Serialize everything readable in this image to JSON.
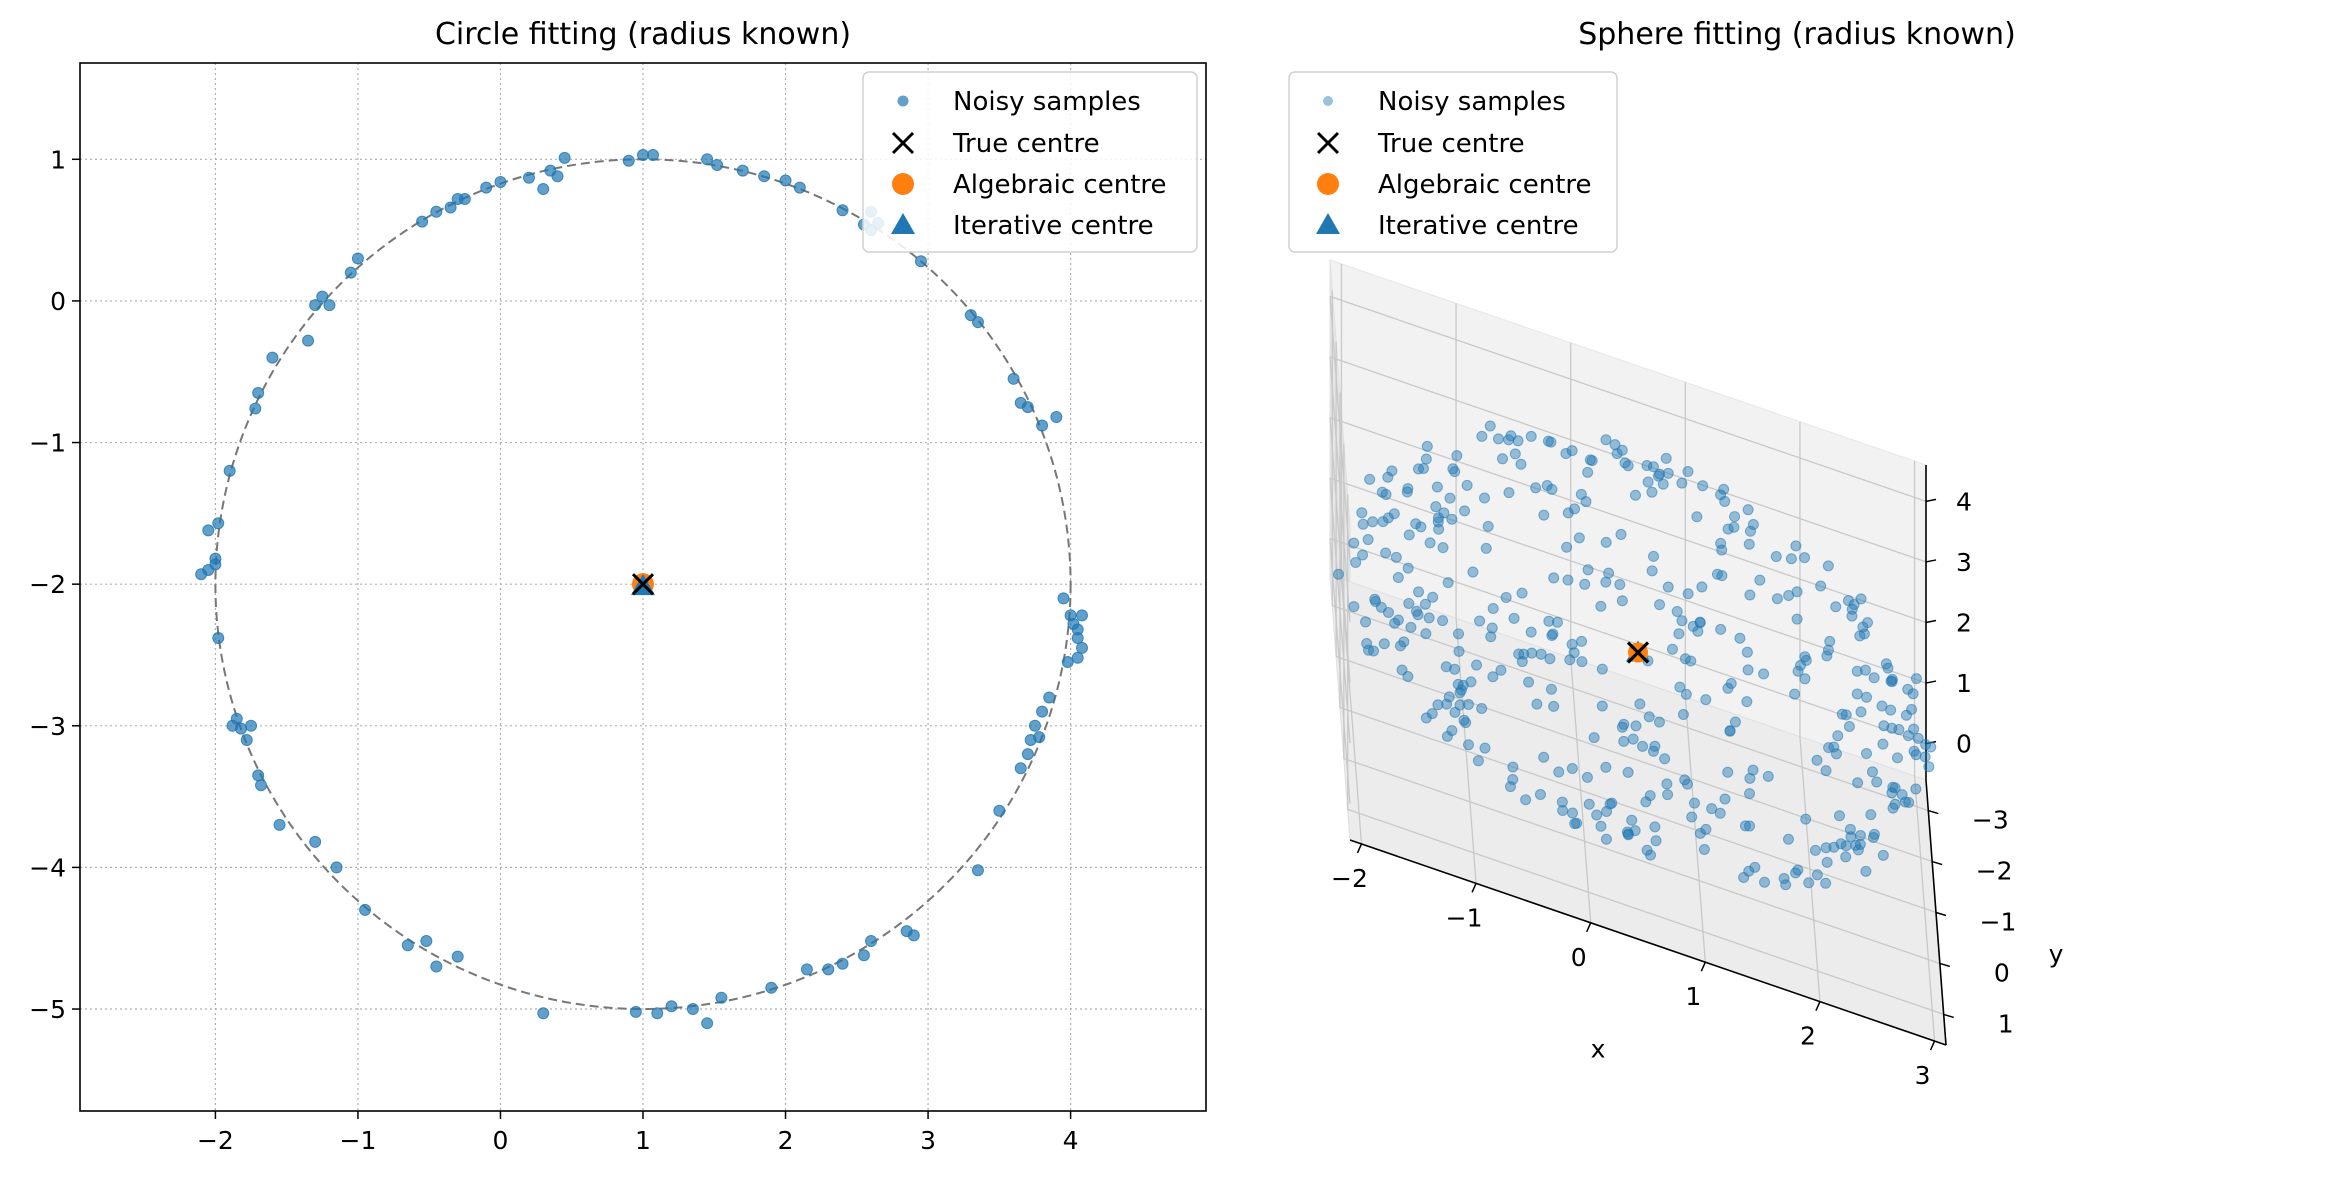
{
  "chart_data": [
    {
      "type": "scatter",
      "title": "Circle fitting (radius known)",
      "xlabel": "",
      "ylabel": "",
      "xlim": [
        -2.95,
        4.95
      ],
      "ylim": [
        -5.72,
        1.68
      ],
      "xticks": [
        "−2",
        "−1",
        "0",
        "1",
        "2",
        "3",
        "4"
      ],
      "yticks": [
        "−5",
        "−4",
        "−3",
        "−2",
        "−1",
        "0",
        "1"
      ],
      "grid": true,
      "legend": "top-right",
      "colors": {
        "samples": "#1f77b4",
        "true": "#000000",
        "algebraic": "#ff7f0e",
        "iterative": "#1f77b4",
        "circle": "#777777"
      },
      "legend_labels": [
        "Noisy samples",
        "True centre",
        "Algebraic centre",
        "Iterative centre"
      ],
      "true_centre": [
        1.0,
        -2.0
      ],
      "algebraic_centre": [
        1.0,
        -2.0
      ],
      "iterative_centre": [
        1.0,
        -2.0
      ],
      "radius": 3.0,
      "samples": [
        [
          0.0,
          0.84
        ],
        [
          -0.1,
          0.8
        ],
        [
          -0.25,
          0.72
        ],
        [
          -0.3,
          0.72
        ],
        [
          -0.35,
          0.66
        ],
        [
          -0.45,
          0.63
        ],
        [
          -0.55,
          0.56
        ],
        [
          0.2,
          0.87
        ],
        [
          0.3,
          0.79
        ],
        [
          0.35,
          0.92
        ],
        [
          0.4,
          0.88
        ],
        [
          0.45,
          1.01
        ],
        [
          0.9,
          0.99
        ],
        [
          1.0,
          1.03
        ],
        [
          1.07,
          1.03
        ],
        [
          1.45,
          1.0
        ],
        [
          1.52,
          0.96
        ],
        [
          1.7,
          0.92
        ],
        [
          1.85,
          0.88
        ],
        [
          2.0,
          0.85
        ],
        [
          2.1,
          0.8
        ],
        [
          2.4,
          0.64
        ],
        [
          2.55,
          0.54
        ],
        [
          2.6,
          0.5
        ],
        [
          2.65,
          0.55
        ],
        [
          2.6,
          0.63
        ],
        [
          2.95,
          0.28
        ],
        [
          3.3,
          -0.1
        ],
        [
          3.35,
          -0.15
        ],
        [
          3.6,
          -0.55
        ],
        [
          3.65,
          -0.72
        ],
        [
          3.7,
          -0.75
        ],
        [
          3.8,
          -0.88
        ],
        [
          3.9,
          -0.82
        ],
        [
          -1.0,
          0.3
        ],
        [
          -1.05,
          0.2
        ],
        [
          -1.25,
          0.03
        ],
        [
          -1.3,
          -0.03
        ],
        [
          -1.2,
          -0.03
        ],
        [
          -1.35,
          -0.28
        ],
        [
          -1.6,
          -0.4
        ],
        [
          -1.7,
          -0.65
        ],
        [
          -1.72,
          -0.76
        ],
        [
          -1.9,
          -1.2
        ],
        [
          -2.05,
          -1.62
        ],
        [
          -1.98,
          -1.57
        ],
        [
          -2.0,
          -1.82
        ],
        [
          -2.0,
          -1.86
        ],
        [
          -2.05,
          -1.9
        ],
        [
          -2.1,
          -1.93
        ],
        [
          -1.98,
          -2.38
        ],
        [
          3.95,
          -2.1
        ],
        [
          4.0,
          -2.22
        ],
        [
          4.02,
          -2.28
        ],
        [
          4.05,
          -2.32
        ],
        [
          4.08,
          -2.22
        ],
        [
          4.05,
          -2.38
        ],
        [
          4.08,
          -2.45
        ],
        [
          4.05,
          -2.52
        ],
        [
          3.98,
          -2.55
        ],
        [
          3.85,
          -2.8
        ],
        [
          3.8,
          -2.9
        ],
        [
          3.75,
          -3.0
        ],
        [
          3.72,
          -3.1
        ],
        [
          3.78,
          -3.08
        ],
        [
          3.7,
          -3.2
        ],
        [
          3.65,
          -3.3
        ],
        [
          3.5,
          -3.6
        ],
        [
          3.35,
          -4.02
        ],
        [
          -1.85,
          -2.95
        ],
        [
          -1.88,
          -3.0
        ],
        [
          -1.82,
          -3.02
        ],
        [
          -1.78,
          -3.1
        ],
        [
          -1.75,
          -3.0
        ],
        [
          -1.7,
          -3.35
        ],
        [
          -1.68,
          -3.42
        ],
        [
          -1.55,
          -3.7
        ],
        [
          -1.3,
          -3.82
        ],
        [
          -1.15,
          -4.0
        ],
        [
          -0.95,
          -4.3
        ],
        [
          -0.65,
          -4.55
        ],
        [
          -0.52,
          -4.52
        ],
        [
          -0.45,
          -4.7
        ],
        [
          -0.3,
          -4.63
        ],
        [
          0.3,
          -5.03
        ],
        [
          2.85,
          -4.45
        ],
        [
          2.9,
          -4.48
        ],
        [
          2.6,
          -4.52
        ],
        [
          2.55,
          -4.62
        ],
        [
          2.4,
          -4.68
        ],
        [
          2.3,
          -4.72
        ],
        [
          2.15,
          -4.72
        ],
        [
          1.9,
          -4.85
        ],
        [
          1.55,
          -4.92
        ],
        [
          1.45,
          -5.1
        ],
        [
          1.35,
          -5.0
        ],
        [
          1.2,
          -4.98
        ],
        [
          1.1,
          -5.03
        ],
        [
          0.95,
          -5.02
        ]
      ]
    },
    {
      "type": "scatter3d",
      "title": "Sphere fitting (radius known)",
      "xlabel": "x",
      "ylabel": "y",
      "zlabel": "",
      "xticks": [
        "−2",
        "−1",
        "0",
        "1",
        "2",
        "3"
      ],
      "yticks": [
        "1",
        "0",
        "−1",
        "−2",
        "−3"
      ],
      "zticks": [
        "0",
        "1",
        "2",
        "3",
        "4"
      ],
      "xlim": [
        -2.1,
        3.1
      ],
      "ylim": [
        -3.6,
        1.6
      ],
      "zlim": [
        -0.6,
        4.6
      ],
      "grid": true,
      "legend": "top-left",
      "legend_labels": [
        "Noisy samples",
        "True centre",
        "Algebraic centre",
        "Iterative centre"
      ],
      "true_centre": [
        0.5,
        -1.0,
        2.0
      ],
      "algebraic_centre": [
        0.5,
        -1.0,
        2.0
      ],
      "iterative_centre": [
        0.5,
        -1.0,
        2.0
      ],
      "radius": 2.5,
      "n_samples": 420
    }
  ]
}
